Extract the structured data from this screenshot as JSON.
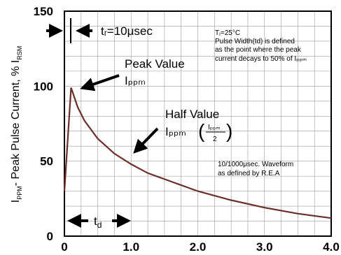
{
  "chart_data": {
    "type": "line",
    "title": "",
    "xlabel": "",
    "ylabel": "I_PPM - Peak Pulse Current, % I_RSM",
    "xlim": [
      0,
      4.0
    ],
    "ylim": [
      0,
      150
    ],
    "x_ticks": [
      "0",
      "1.0",
      "2.0",
      "3.0",
      "4.0"
    ],
    "y_ticks": [
      "0",
      "50",
      "100",
      "150"
    ],
    "grid": true,
    "series": [
      {
        "color": "#6b2f2a",
        "x": [
          0,
          0.1,
          0.2,
          0.3,
          0.5,
          0.75,
          1.0,
          1.25,
          1.5,
          2.0,
          2.5,
          3.0,
          3.5,
          4.0
        ],
        "y": [
          30,
          99,
          86,
          77,
          65,
          55,
          48,
          42,
          38,
          30,
          24,
          19,
          15,
          12
        ]
      }
    ],
    "annotations": {
      "rise_time": "tᵣ=10μsec",
      "conditions": [
        "Tⱼ=25°C",
        "Pulse Width(td) is defined",
        "as the point where the peak",
        "current decays to 50% of Iₚₚₘ"
      ],
      "peak_value": "Peak Value",
      "peak_symbol": "Iₚₚₘ",
      "half_value": "Half Value",
      "half_symbol": "Iₚₚₘ",
      "half_fraction_num": "Iₚₚₘ",
      "half_fraction_den": "2",
      "waveform": [
        "10/1000μsec. Waveform",
        "as defined by R.E.A"
      ],
      "td_label": "t",
      "td_sub": "d"
    }
  }
}
